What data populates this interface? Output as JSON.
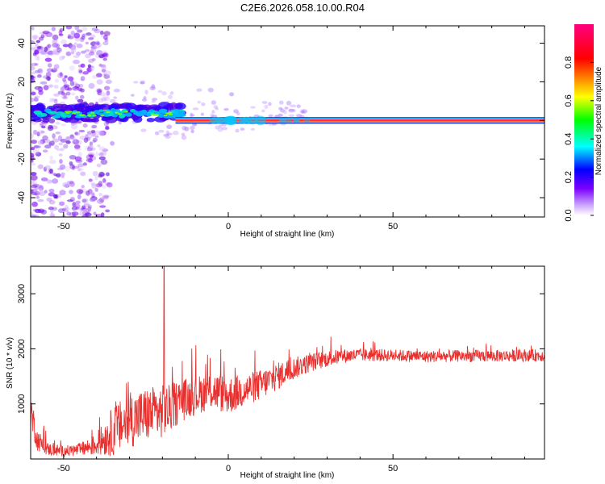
{
  "title": "C2E6.2026.058.10.00.R04",
  "chart_data": [
    {
      "type": "heatmap",
      "name": "spectrogram",
      "xlabel": "Height of straight line (km)",
      "ylabel": "Frequency (Hz)",
      "xlim": [
        -60,
        96
      ],
      "ylim": [
        -50,
        49
      ],
      "x_ticks": [
        -50,
        0,
        50
      ],
      "y_ticks": [
        -40,
        -20,
        0,
        20,
        40
      ],
      "x_tick_labels": [
        "-50",
        "0",
        "50"
      ],
      "y_tick_labels": [
        "-40",
        "-20",
        "0",
        "20",
        "40"
      ],
      "colorbar": {
        "label": "Normalized spectral amplitude",
        "range": [
          0,
          1
        ],
        "ticks": [
          0.0,
          0.2,
          0.4,
          0.6,
          0.8
        ],
        "tick_labels": [
          "0.0",
          "0.2",
          "0.4",
          "0.6",
          "0.8"
        ],
        "colormap": [
          "#ffffff",
          "#7b00ff",
          "#0000ff",
          "#00ffff",
          "#00ff00",
          "#ffff00",
          "#ff8000",
          "#ff0000",
          "#ff0080"
        ]
      },
      "features": [
        {
          "label": "scattered noise",
          "x_range": [
            -60,
            -38
          ],
          "freq_range": [
            -50,
            49
          ],
          "amplitude": 0.05
        },
        {
          "label": "broad band",
          "x_range": [
            -60,
            -15
          ],
          "freq_center": 4,
          "amplitude": 0.4
        },
        {
          "label": "carrier line",
          "x_range": [
            -16,
            96
          ],
          "freq_center": 0,
          "amplitude": 1.0
        }
      ]
    },
    {
      "type": "line",
      "name": "snr",
      "xlabel": "Height of straight line (km)",
      "ylabel": "SNR (10 * v/v)",
      "xlim": [
        -60,
        96
      ],
      "ylim": [
        0,
        3500
      ],
      "x_ticks": [
        -50,
        0,
        50
      ],
      "y_ticks": [
        1000,
        2000,
        3000
      ],
      "x_tick_labels": [
        "-50",
        "0",
        "50"
      ],
      "y_tick_labels": [
        "1000",
        "2000",
        "3000"
      ],
      "color": "#e8312f",
      "envelope": {
        "x": [
          -60,
          -58,
          -55,
          -50,
          -45,
          -40,
          -35,
          -30,
          -25,
          -21,
          -18,
          -15,
          -10,
          -5,
          0,
          5,
          10,
          15,
          20,
          25,
          30,
          35,
          40,
          50,
          60,
          70,
          80,
          90,
          96
        ],
        "y": [
          900,
          350,
          180,
          140,
          170,
          260,
          500,
          700,
          800,
          850,
          900,
          1050,
          1150,
          1250,
          1150,
          1250,
          1350,
          1500,
          1650,
          1750,
          1820,
          1870,
          1890,
          1880,
          1860,
          1870,
          1870,
          1880,
          1880
        ],
        "spread": [
          350,
          200,
          120,
          100,
          120,
          200,
          450,
          500,
          500,
          500,
          450,
          400,
          350,
          350,
          350,
          300,
          280,
          250,
          200,
          170,
          150,
          130,
          120,
          110,
          110,
          110,
          110,
          110,
          110
        ]
      },
      "spikes": [
        {
          "x": -19.5,
          "y": 3500
        }
      ]
    }
  ]
}
